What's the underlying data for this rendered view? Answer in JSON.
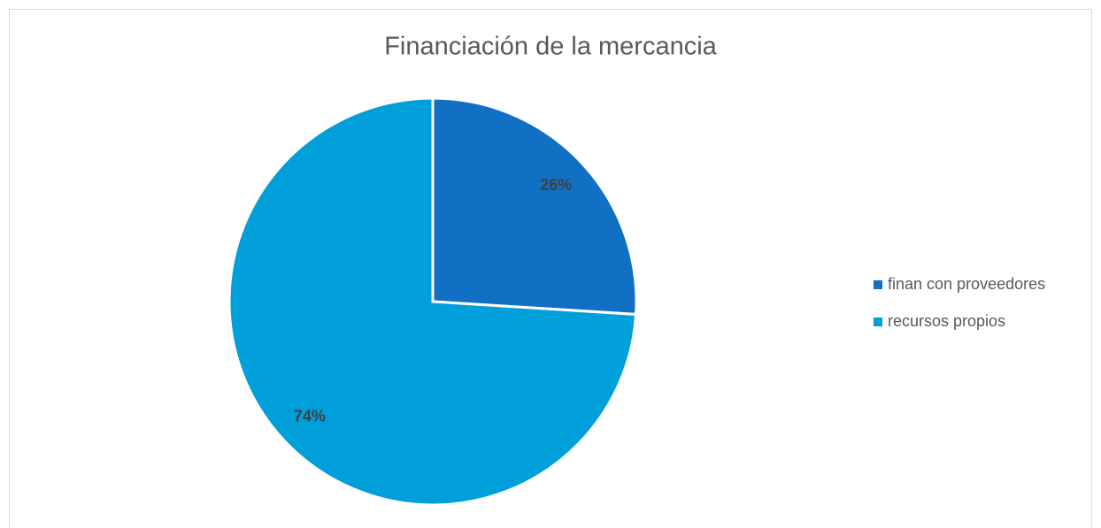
{
  "chart_data": {
    "type": "pie",
    "title": "Financiación de la mercancia",
    "categories": [
      "finan con proveedores",
      "recursos propios"
    ],
    "values": [
      26,
      74
    ],
    "value_labels": [
      "26%",
      "74%"
    ],
    "colors": [
      "#1170c4",
      "#009fd9"
    ],
    "legend": "right"
  }
}
